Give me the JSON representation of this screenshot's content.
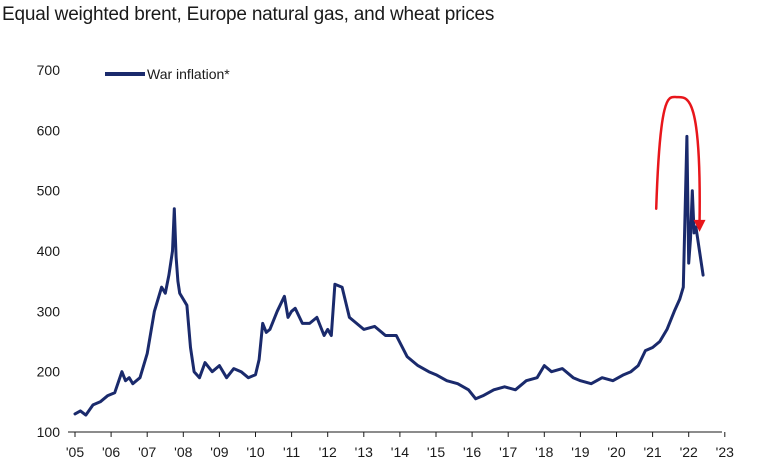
{
  "chart_data": {
    "type": "line",
    "title": "Equal weighted brent, Europe natural gas, and wheat prices",
    "xlabel": "",
    "ylabel": "",
    "ylim": [
      100,
      700
    ],
    "xlim": [
      2005.0,
      2023.5
    ],
    "yticks": [
      "100",
      "200",
      "300",
      "400",
      "500",
      "600",
      "700"
    ],
    "xticks": [
      "'05",
      "'06",
      "'07",
      "'08",
      "'09",
      "'10",
      "'11",
      "'12",
      "'13",
      "'14",
      "'15",
      "'16",
      "'17",
      "'18",
      "'19",
      "'20",
      "'21",
      "'22",
      "'23"
    ],
    "legend_position": "top-left",
    "grid": false,
    "series_color": "#1a2a6c",
    "annotation_color": "#e8161b",
    "series": [
      {
        "name": "War inflation*",
        "x": [
          2005.0,
          2005.15,
          2005.3,
          2005.5,
          2005.7,
          2005.9,
          2006.1,
          2006.3,
          2006.4,
          2006.5,
          2006.6,
          2006.8,
          2007.0,
          2007.2,
          2007.4,
          2007.5,
          2007.6,
          2007.7,
          2007.75,
          2007.8,
          2007.85,
          2007.9,
          2008.0,
          2008.1,
          2008.2,
          2008.3,
          2008.45,
          2008.6,
          2008.8,
          2009.0,
          2009.2,
          2009.4,
          2009.6,
          2009.8,
          2010.0,
          2010.1,
          2010.2,
          2010.3,
          2010.4,
          2010.6,
          2010.8,
          2010.9,
          2011.0,
          2011.1,
          2011.3,
          2011.5,
          2011.7,
          2011.9,
          2012.0,
          2012.1,
          2012.2,
          2012.4,
          2012.6,
          2012.8,
          2013.0,
          2013.3,
          2013.6,
          2013.9,
          2014.2,
          2014.5,
          2014.8,
          2015.0,
          2015.3,
          2015.6,
          2015.9,
          2016.1,
          2016.3,
          2016.6,
          2016.9,
          2017.2,
          2017.5,
          2017.8,
          2018.0,
          2018.2,
          2018.5,
          2018.8,
          2019.0,
          2019.3,
          2019.6,
          2019.9,
          2020.2,
          2020.4,
          2020.6,
          2020.8,
          2021.0,
          2021.2,
          2021.4,
          2021.6,
          2021.75,
          2021.85,
          2021.95,
          2022.0,
          2022.05,
          2022.1,
          2022.15,
          2022.2,
          2022.3,
          2022.35,
          2022.4
        ],
        "values": [
          130,
          135,
          128,
          145,
          150,
          160,
          165,
          200,
          185,
          190,
          180,
          190,
          230,
          300,
          340,
          330,
          360,
          400,
          470,
          390,
          350,
          330,
          320,
          310,
          240,
          200,
          190,
          215,
          200,
          210,
          190,
          205,
          200,
          190,
          195,
          220,
          280,
          265,
          270,
          300,
          325,
          290,
          300,
          305,
          280,
          280,
          290,
          260,
          270,
          260,
          345,
          340,
          290,
          280,
          270,
          275,
          260,
          260,
          225,
          210,
          200,
          195,
          185,
          180,
          170,
          155,
          160,
          170,
          175,
          170,
          185,
          190,
          210,
          200,
          205,
          190,
          185,
          180,
          190,
          185,
          195,
          200,
          210,
          235,
          240,
          250,
          270,
          300,
          320,
          340,
          590,
          380,
          420,
          500,
          430,
          440,
          400,
          380,
          360
        ]
      }
    ],
    "annotation": {
      "type": "arrow-arc",
      "from": [
        2021.1,
        470
      ],
      "peak": [
        2021.68,
        655
      ],
      "to": [
        2022.3,
        435
      ]
    }
  }
}
